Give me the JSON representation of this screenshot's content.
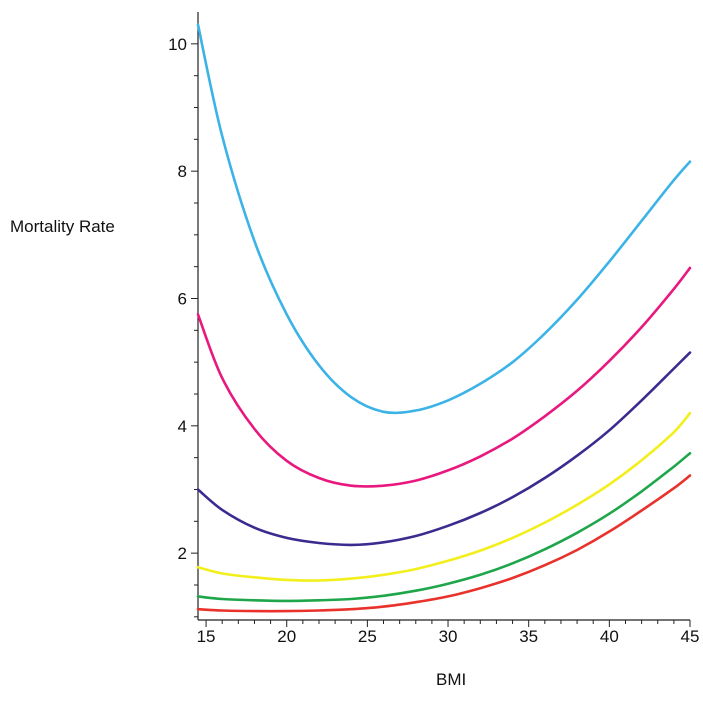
{
  "chart_data": {
    "type": "line",
    "title": "",
    "xlabel": "BMI",
    "ylabel": "Mortality Rate",
    "xlim": [
      14.5,
      45
    ],
    "ylim": [
      0.95,
      10.5
    ],
    "x_ticks": [
      15,
      20,
      25,
      30,
      35,
      40,
      45
    ],
    "y_ticks": [
      2,
      4,
      6,
      8,
      10
    ],
    "grid": false,
    "legend": "none",
    "series": [
      {
        "color": "#3bb3e6",
        "x": [
          14.5,
          16,
          18,
          20,
          22,
          24,
          26,
          28,
          30,
          32,
          34,
          36,
          38,
          40,
          42,
          44,
          45
        ],
        "y": [
          10.3,
          8.55,
          6.9,
          5.75,
          4.95,
          4.45,
          4.22,
          4.24,
          4.4,
          4.66,
          5.0,
          5.45,
          5.98,
          6.58,
          7.22,
          7.86,
          8.15
        ]
      },
      {
        "color": "#e8187f",
        "x": [
          14.5,
          16,
          18,
          20,
          22,
          24,
          26,
          28,
          30,
          32,
          34,
          36,
          38,
          40,
          42,
          44,
          45
        ],
        "y": [
          5.75,
          4.75,
          3.95,
          3.45,
          3.18,
          3.06,
          3.06,
          3.14,
          3.3,
          3.52,
          3.8,
          4.15,
          4.55,
          5.02,
          5.55,
          6.15,
          6.48
        ]
      },
      {
        "color": "#3d2a8f",
        "x": [
          14.5,
          16,
          18,
          20,
          22,
          24,
          26,
          28,
          30,
          32,
          34,
          36,
          38,
          40,
          42,
          44,
          45
        ],
        "y": [
          3.0,
          2.68,
          2.4,
          2.24,
          2.16,
          2.13,
          2.17,
          2.27,
          2.43,
          2.63,
          2.88,
          3.18,
          3.53,
          3.93,
          4.4,
          4.9,
          5.15
        ]
      },
      {
        "color": "#f2ef1c",
        "x": [
          14.5,
          16,
          18,
          20,
          22,
          24,
          26,
          28,
          30,
          32,
          34,
          36,
          38,
          40,
          42,
          44,
          45
        ],
        "y": [
          1.78,
          1.68,
          1.62,
          1.58,
          1.57,
          1.6,
          1.66,
          1.75,
          1.88,
          2.04,
          2.24,
          2.48,
          2.76,
          3.08,
          3.46,
          3.9,
          4.2
        ]
      },
      {
        "color": "#1fa64a",
        "x": [
          14.5,
          16,
          18,
          20,
          22,
          24,
          26,
          28,
          30,
          32,
          34,
          36,
          38,
          40,
          42,
          44,
          45
        ],
        "y": [
          1.32,
          1.28,
          1.26,
          1.25,
          1.26,
          1.28,
          1.33,
          1.41,
          1.52,
          1.66,
          1.84,
          2.06,
          2.32,
          2.62,
          2.97,
          3.36,
          3.57
        ]
      },
      {
        "color": "#e8322b",
        "x": [
          14.5,
          16,
          18,
          20,
          22,
          24,
          26,
          28,
          30,
          32,
          34,
          36,
          38,
          40,
          42,
          44,
          45
        ],
        "y": [
          1.12,
          1.1,
          1.09,
          1.09,
          1.1,
          1.12,
          1.16,
          1.23,
          1.32,
          1.45,
          1.61,
          1.81,
          2.05,
          2.34,
          2.67,
          3.02,
          3.22
        ]
      }
    ]
  }
}
